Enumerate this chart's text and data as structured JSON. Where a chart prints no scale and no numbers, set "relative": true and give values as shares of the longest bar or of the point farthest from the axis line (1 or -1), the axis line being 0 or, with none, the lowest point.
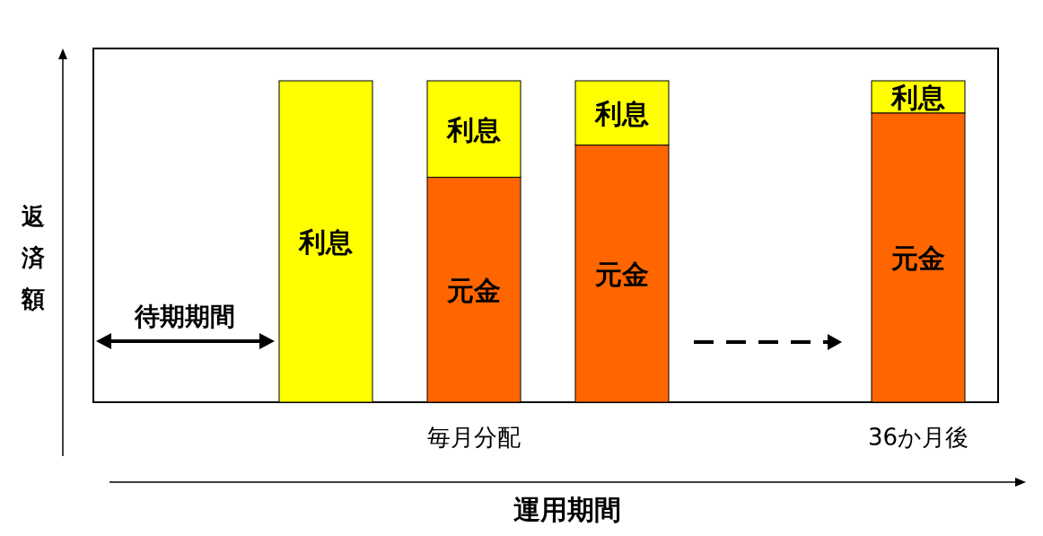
{
  "chart_data": {
    "type": "bar",
    "stacked": true,
    "relative": true,
    "xlabel": "運用期間",
    "ylabel": "返済額",
    "categories": [
      null,
      null,
      "毎月分配",
      null,
      null,
      "36か月後"
    ],
    "series": [
      {
        "name": "元金",
        "color": "#ff6600",
        "values": [
          null,
          0,
          0.7,
          0.8,
          null,
          0.9
        ]
      },
      {
        "name": "利息",
        "color": "#ffff00",
        "values": [
          null,
          1,
          0.3,
          0.2,
          null,
          0.1
        ]
      }
    ],
    "annotations": [
      "待期期間"
    ]
  }
}
